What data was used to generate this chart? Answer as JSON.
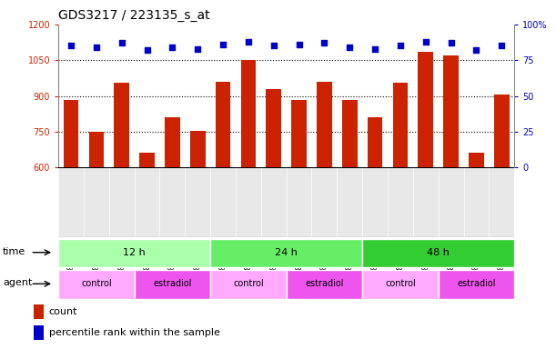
{
  "title": "GDS3217 / 223135_s_at",
  "samples": [
    "GSM286756",
    "GSM286757",
    "GSM286758",
    "GSM286759",
    "GSM286760",
    "GSM286761",
    "GSM286762",
    "GSM286763",
    "GSM286764",
    "GSM286765",
    "GSM286766",
    "GSM286767",
    "GSM286768",
    "GSM286769",
    "GSM286770",
    "GSM286771",
    "GSM286772",
    "GSM286773"
  ],
  "counts": [
    885,
    748,
    955,
    663,
    810,
    752,
    958,
    1050,
    930,
    882,
    960,
    882,
    810,
    955,
    1085,
    1070,
    663,
    908
  ],
  "percentile_ranks": [
    85,
    84,
    87,
    82,
    84,
    83,
    86,
    88,
    85,
    86,
    87,
    84,
    83,
    85,
    88,
    87,
    82,
    85
  ],
  "bar_color": "#cc2200",
  "dot_color": "#0000cc",
  "ylim_left": [
    600,
    1200
  ],
  "ylim_right": [
    0,
    100
  ],
  "yticks_left": [
    600,
    750,
    900,
    1050,
    1200
  ],
  "yticks_right": [
    0,
    25,
    50,
    75,
    100
  ],
  "ylabel_right_labels": [
    "0",
    "25",
    "50",
    "75",
    "100%"
  ],
  "time_groups": [
    {
      "label": "12 h",
      "start": 0,
      "end": 6,
      "color": "#aaffaa"
    },
    {
      "label": "24 h",
      "start": 6,
      "end": 12,
      "color": "#66ee66"
    },
    {
      "label": "48 h",
      "start": 12,
      "end": 18,
      "color": "#33cc33"
    }
  ],
  "agent_groups": [
    {
      "label": "control",
      "start": 0,
      "end": 3,
      "color": "#ffaaff"
    },
    {
      "label": "estradiol",
      "start": 3,
      "end": 6,
      "color": "#ee55ee"
    },
    {
      "label": "control",
      "start": 6,
      "end": 9,
      "color": "#ffaaff"
    },
    {
      "label": "estradiol",
      "start": 9,
      "end": 12,
      "color": "#ee55ee"
    },
    {
      "label": "control",
      "start": 12,
      "end": 15,
      "color": "#ffaaff"
    },
    {
      "label": "estradiol",
      "start": 15,
      "end": 18,
      "color": "#ee55ee"
    }
  ],
  "legend_count_color": "#cc2200",
  "legend_dot_color": "#0000cc",
  "bg_color": "#ffffff",
  "grid_color": "#000000",
  "tick_label_color_left": "#cc2200",
  "tick_label_color_right": "#0000cc",
  "bar_width": 0.6,
  "title_fontsize": 10,
  "tick_fontsize": 7,
  "label_fontsize": 8,
  "annotation_fontsize": 8,
  "xlim": [
    -0.5,
    17.5
  ]
}
